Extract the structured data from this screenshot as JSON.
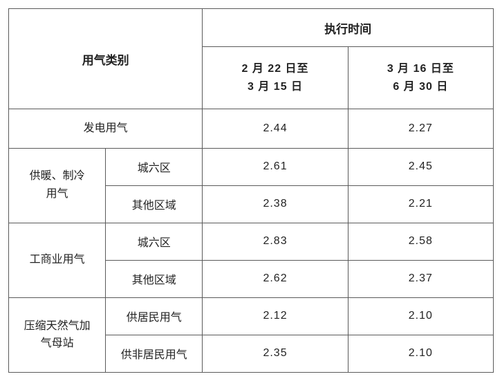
{
  "header": {
    "category": "用气类别",
    "execution_time": "执行时间",
    "periods": [
      {
        "line1": "2 月 22 日至",
        "line2": "3 月 15 日"
      },
      {
        "line1": "3 月 16 日至",
        "line2": "6 月 30 日"
      }
    ]
  },
  "rows": [
    {
      "category": "发电用气",
      "sub": null,
      "v1": "2.44",
      "v2": "2.27"
    },
    {
      "category": "供暖、制冷用气",
      "category_line1": "供暖、制冷",
      "category_line2": "用气",
      "sub": "城六区",
      "v1": "2.61",
      "v2": "2.45"
    },
    {
      "category": null,
      "sub": "其他区域",
      "v1": "2.38",
      "v2": "2.21"
    },
    {
      "category": "工商业用气",
      "sub": "城六区",
      "v1": "2.83",
      "v2": "2.58"
    },
    {
      "category": null,
      "sub": "其他区域",
      "v1": "2.62",
      "v2": "2.37"
    },
    {
      "category": "压缩天然气加气母站",
      "category_line1": "压缩天然气加",
      "category_line2": "气母站",
      "sub": "供居民用气",
      "v1": "2.12",
      "v2": "2.10"
    },
    {
      "category": null,
      "sub": "供非居民用气",
      "v1": "2.35",
      "v2": "2.10"
    }
  ],
  "style": {
    "border_color": "#5a5a5a",
    "background_color": "#ffffff",
    "text_color": "#222222",
    "header_fontsize": 17,
    "body_fontsize": 16,
    "font_family": "Microsoft YaHei, SimSun, sans-serif"
  }
}
